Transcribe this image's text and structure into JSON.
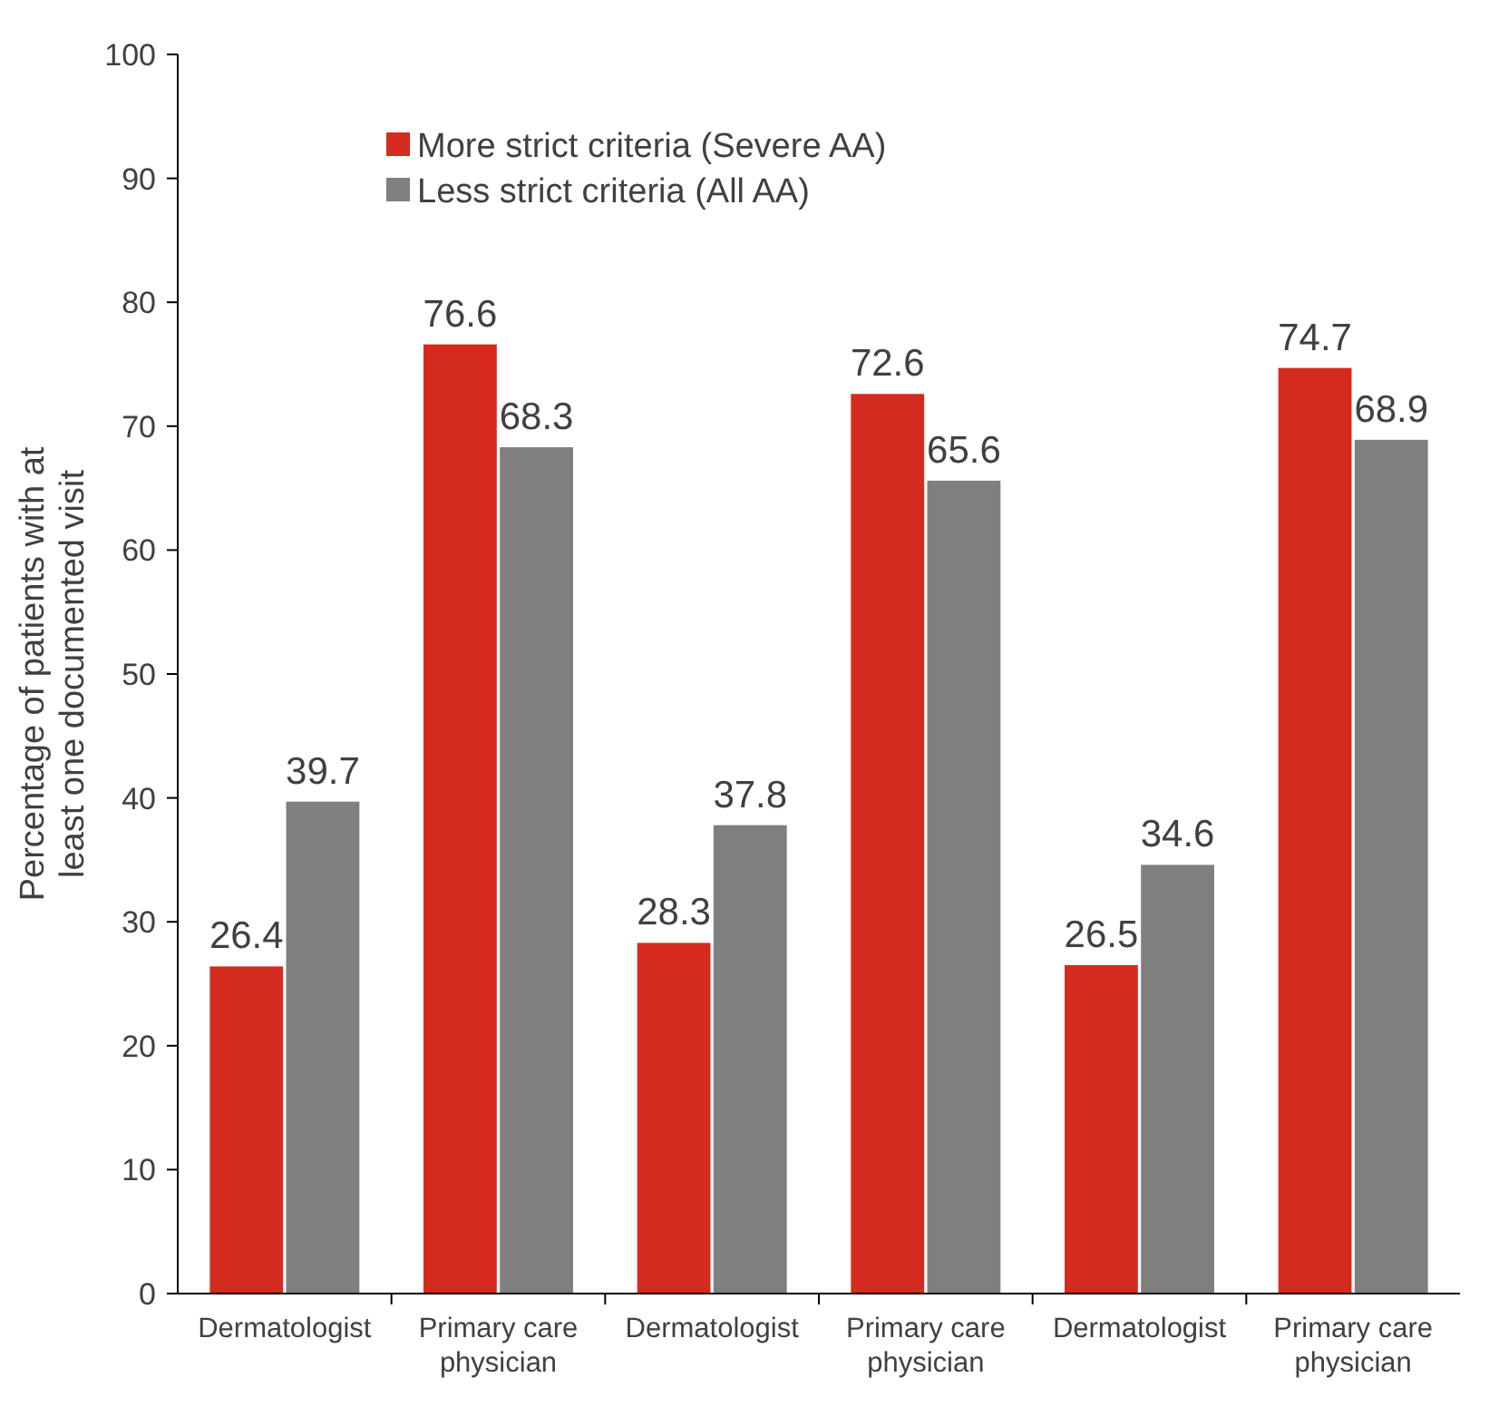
{
  "chart_data": {
    "type": "bar",
    "ylabel": "Percentage of patients with at least one documented visit",
    "categories": [
      "Dermatologist",
      "Primary care physician",
      "Dermatologist",
      "Primary care physician",
      "Dermatologist",
      "Primary care physician"
    ],
    "series": [
      {
        "name": "More strict criteria (Severe AA)",
        "color": "#d52b1e",
        "values": [
          26.4,
          76.6,
          28.3,
          72.6,
          26.5,
          74.7
        ]
      },
      {
        "name": "Less strict criteria (All AA)",
        "color": "#7f7f7f",
        "values": [
          39.7,
          68.3,
          37.8,
          65.6,
          34.6,
          68.9
        ]
      }
    ],
    "ylim": [
      0,
      100
    ],
    "yticks": [
      0,
      10,
      20,
      30,
      40,
      50,
      60,
      70,
      80,
      90,
      100
    ],
    "data_labels": true,
    "legend": "top",
    "grid": false
  }
}
